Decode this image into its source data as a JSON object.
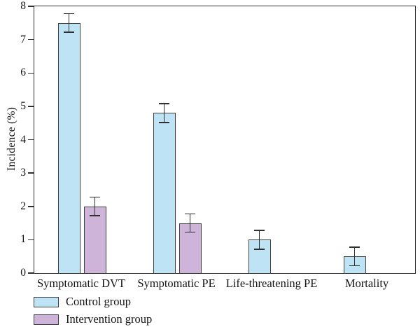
{
  "chart_data": {
    "type": "bar",
    "title": "",
    "xlabel": "",
    "ylabel": "Incidence (%)",
    "ylim": [
      0,
      8
    ],
    "yticks": [
      0,
      1,
      2,
      3,
      4,
      5,
      6,
      7,
      8
    ],
    "grid": false,
    "error_bars": true,
    "legend_position": "bottom-left",
    "categories": [
      "Symptomatic DVT",
      "Symptomatic PE",
      "Life-threatening PE",
      "Mortality"
    ],
    "series": [
      {
        "name": "Control group",
        "color": "#bee3f5",
        "values": [
          7.5,
          4.8,
          1.0,
          0.5
        ],
        "errors": [
          0.28,
          0.28,
          0.28,
          0.28
        ]
      },
      {
        "name": "Intervention group",
        "color": "#cdb4d8",
        "values": [
          2.0,
          1.5,
          null,
          null
        ],
        "errors": [
          0.28,
          0.27,
          null,
          null
        ]
      }
    ],
    "colors": {
      "bar_border": "#3f3f3f",
      "axis": "#2e2e2e",
      "error_bar": "#2f2f2f",
      "text": "#141414",
      "background": "#ffffff"
    }
  }
}
